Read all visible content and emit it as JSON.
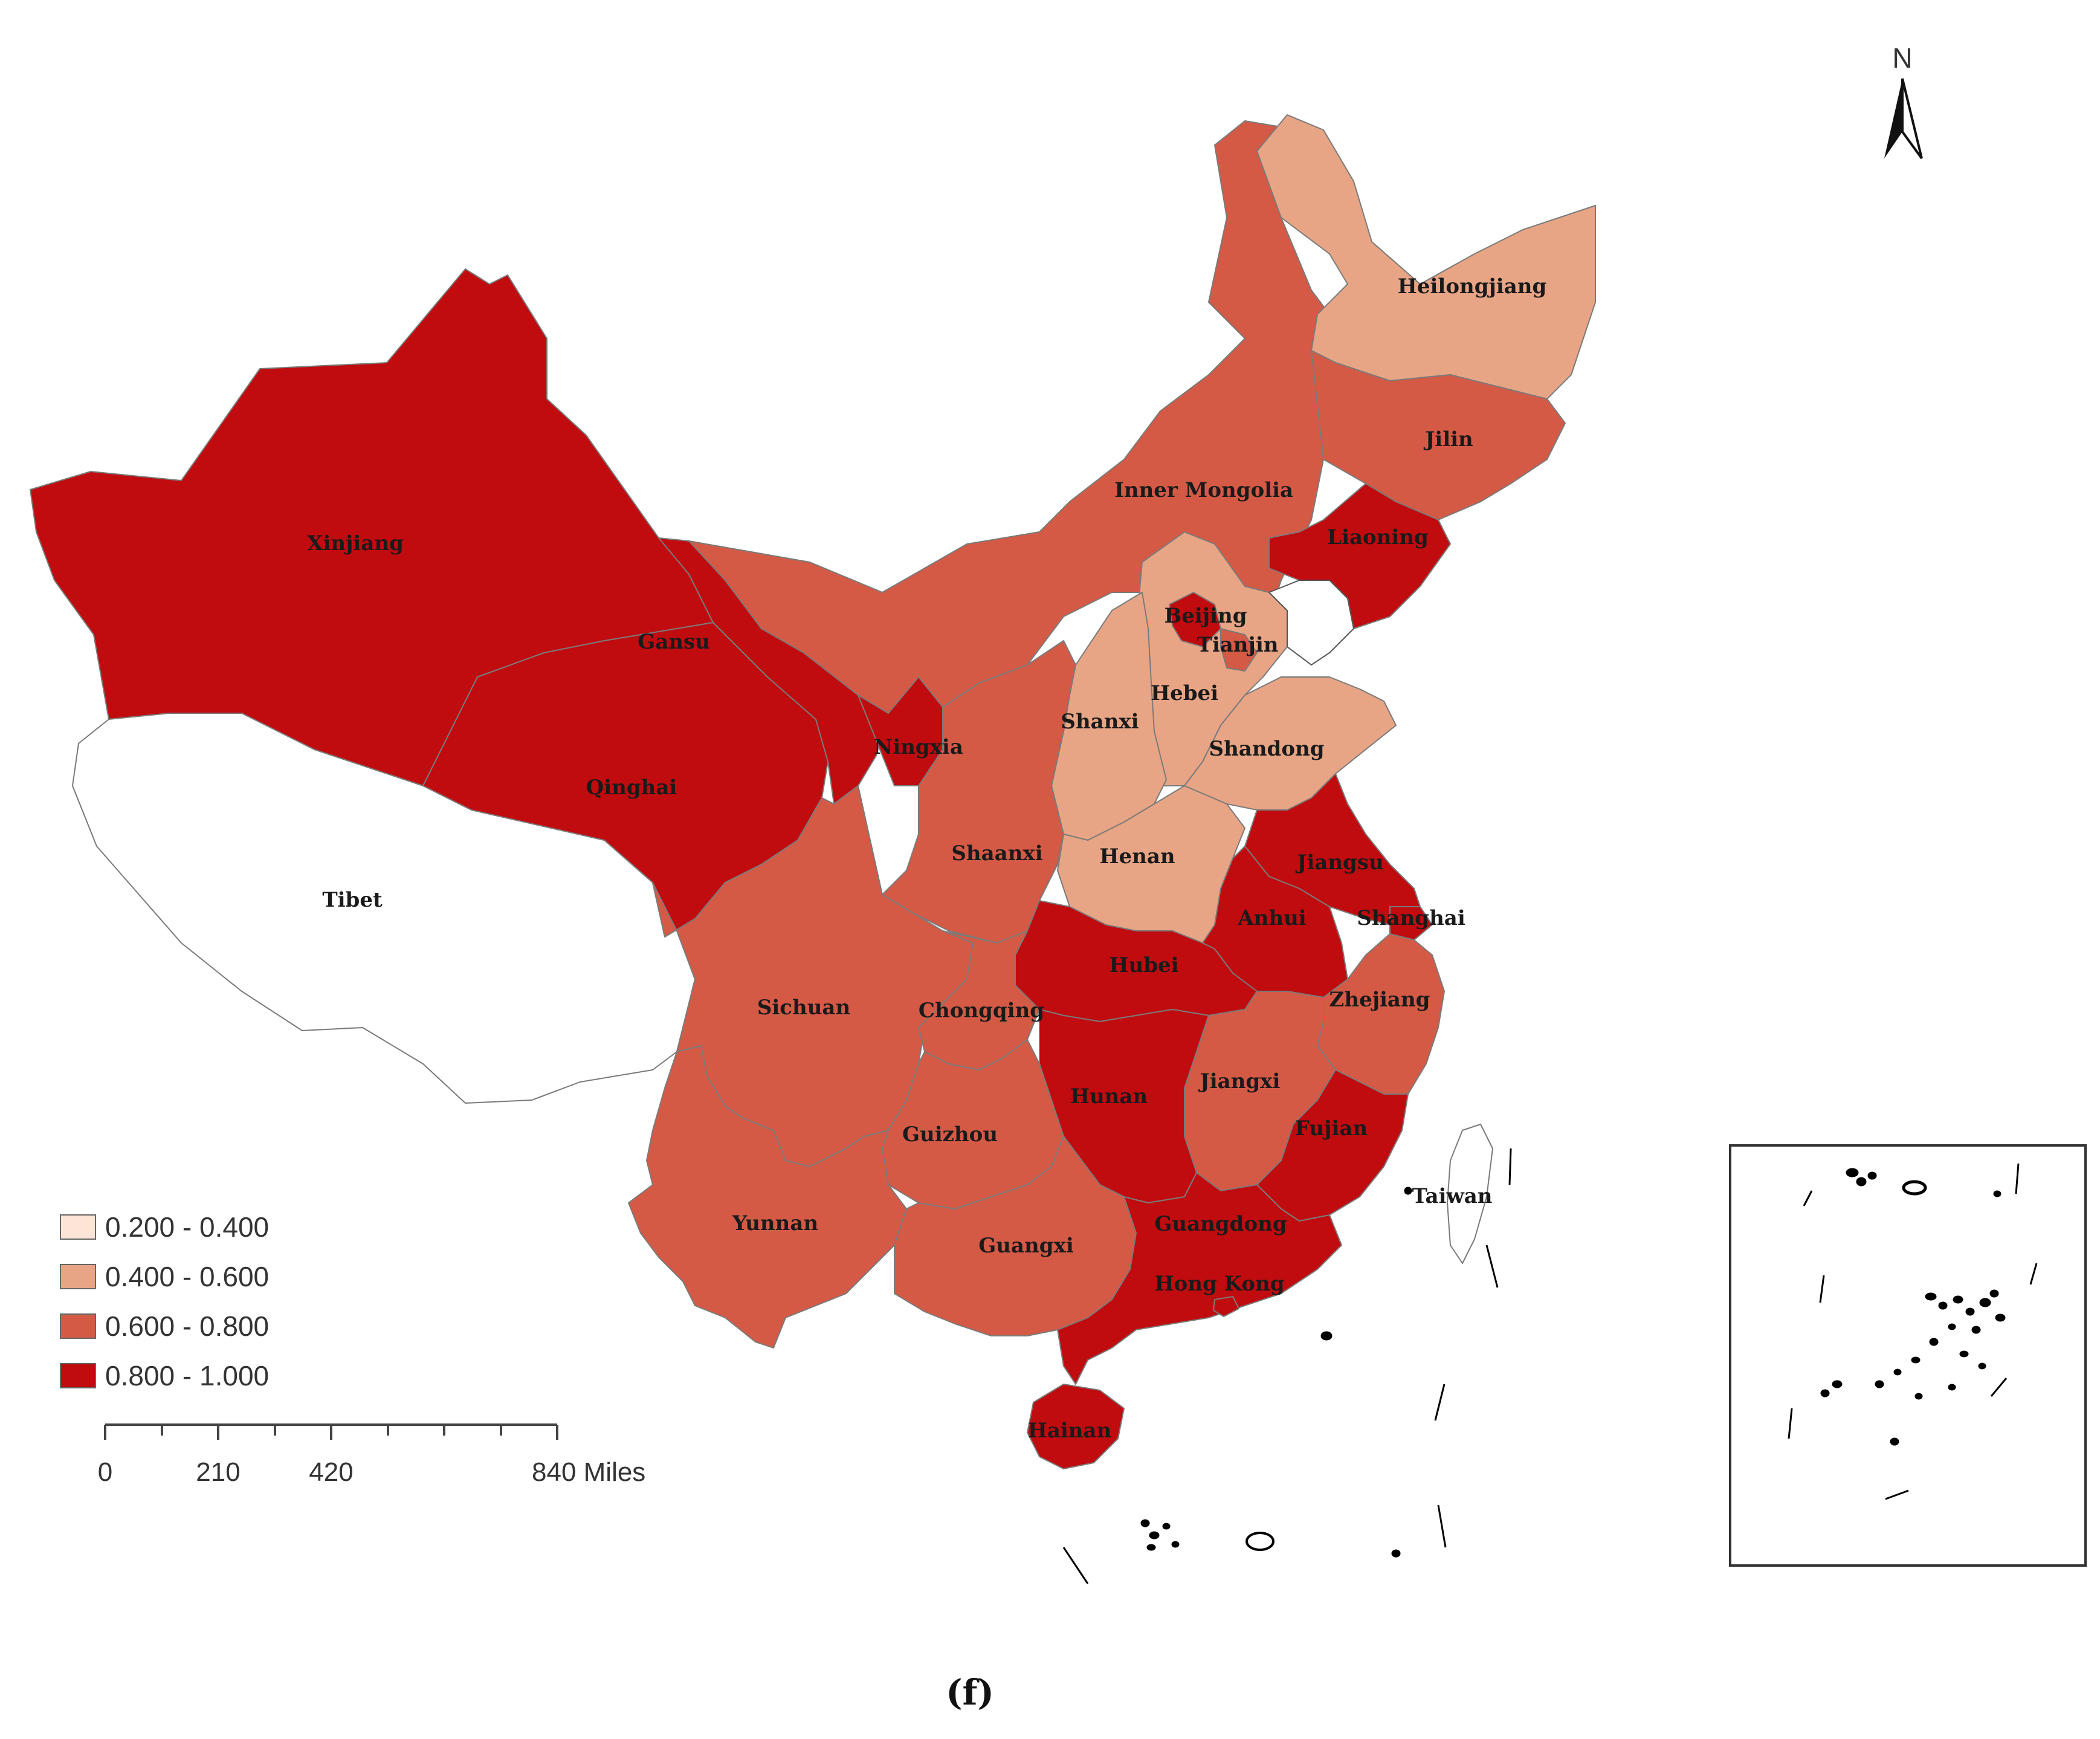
{
  "colors": {
    "c1": "#fce4d6",
    "c2": "#e8a585",
    "c3": "#d45a46",
    "c4": "#c00b0f",
    "nodata": "#ffffff"
  },
  "legend": [
    {
      "label": "0.200 - 0.400",
      "class": "c1"
    },
    {
      "label": "0.400 - 0.600",
      "class": "c2"
    },
    {
      "label": "0.600 - 0.800",
      "class": "c3"
    },
    {
      "label": "0.800 - 1.000",
      "class": "c4"
    }
  ],
  "scalebar": {
    "ticks": [
      "0",
      "210",
      "420",
      "840 Miles"
    ]
  },
  "north_label": "N",
  "caption": "(f)",
  "provinces": [
    {
      "id": "xinjiang",
      "name": "Xinjiang",
      "class": "c4"
    },
    {
      "id": "tibet",
      "name": "Tibet",
      "class": "nodata"
    },
    {
      "id": "qinghai",
      "name": "Qinghai",
      "class": "c4"
    },
    {
      "id": "gansu",
      "name": "Gansu",
      "class": "c4"
    },
    {
      "id": "inner-mongolia",
      "name": "Inner Mongolia",
      "class": "c3"
    },
    {
      "id": "heilongjiang",
      "name": "Heilongjiang",
      "class": "c2"
    },
    {
      "id": "jilin",
      "name": "Jilin",
      "class": "c3"
    },
    {
      "id": "liaoning",
      "name": "Liaoning",
      "class": "c4"
    },
    {
      "id": "beijing",
      "name": "Beijing",
      "class": "c4"
    },
    {
      "id": "tianjin",
      "name": "Tianjin",
      "class": "c3"
    },
    {
      "id": "hebei",
      "name": "Hebei",
      "class": "c2"
    },
    {
      "id": "shanxi",
      "name": "Shanxi",
      "class": "c2"
    },
    {
      "id": "shandong",
      "name": "Shandong",
      "class": "c2"
    },
    {
      "id": "ningxia",
      "name": "Ningxia",
      "class": "c4"
    },
    {
      "id": "shaanxi",
      "name": "Shaanxi",
      "class": "c3"
    },
    {
      "id": "henan",
      "name": "Henan",
      "class": "c2"
    },
    {
      "id": "jiangsu",
      "name": "Jiangsu",
      "class": "c4"
    },
    {
      "id": "anhui",
      "name": "Anhui",
      "class": "c4"
    },
    {
      "id": "shanghai",
      "name": "Shanghai",
      "class": "c4"
    },
    {
      "id": "hubei",
      "name": "Hubei",
      "class": "c4"
    },
    {
      "id": "sichuan",
      "name": "Sichuan",
      "class": "c3"
    },
    {
      "id": "chongqing",
      "name": "Chongqing",
      "class": "c3"
    },
    {
      "id": "zhejiang",
      "name": "Zhejiang",
      "class": "c3"
    },
    {
      "id": "jiangxi",
      "name": "Jiangxi",
      "class": "c3"
    },
    {
      "id": "hunan",
      "name": "Hunan",
      "class": "c4"
    },
    {
      "id": "fujian",
      "name": "Fujian",
      "class": "c4"
    },
    {
      "id": "guizhou",
      "name": "Guizhou",
      "class": "c3"
    },
    {
      "id": "yunnan",
      "name": "Yunnan",
      "class": "c3"
    },
    {
      "id": "guangxi",
      "name": "Guangxi",
      "class": "c3"
    },
    {
      "id": "guangdong",
      "name": "Guangdong",
      "class": "c4"
    },
    {
      "id": "hong-kong",
      "name": "Hong Kong",
      "class": "c4"
    },
    {
      "id": "hainan",
      "name": "Hainan",
      "class": "c4"
    },
    {
      "id": "taiwan",
      "name": "Taiwan",
      "class": "nodata"
    }
  ]
}
